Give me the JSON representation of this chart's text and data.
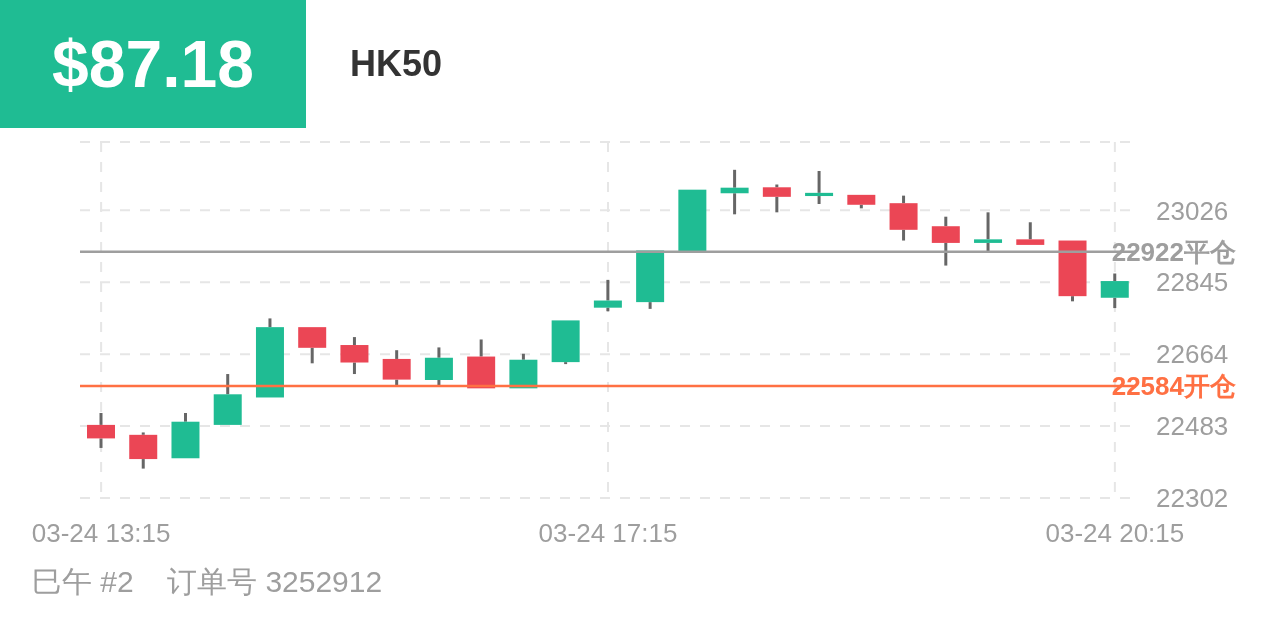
{
  "chart_data": {
    "type": "candlestick",
    "title": "HK50",
    "subtitle": "$87.18",
    "categories": [
      "03-24 13:15",
      null,
      null,
      null,
      null,
      null,
      null,
      null,
      null,
      null,
      null,
      null,
      "03-24 17:15",
      null,
      null,
      null,
      null,
      null,
      null,
      null,
      null,
      null,
      null,
      null,
      "03-24 20:15"
    ],
    "ohlc": [
      [
        22486,
        22516,
        22428,
        22452
      ],
      [
        22461,
        22467,
        22376,
        22400
      ],
      [
        22402,
        22516,
        22402,
        22494
      ],
      [
        22486,
        22614,
        22486,
        22563
      ],
      [
        22555,
        22754,
        22555,
        22732
      ],
      [
        22732,
        22732,
        22641,
        22680
      ],
      [
        22687,
        22707,
        22614,
        22643
      ],
      [
        22652,
        22674,
        22585,
        22600
      ],
      [
        22599,
        22681,
        22585,
        22655
      ],
      [
        22658,
        22701,
        22578,
        22578
      ],
      [
        22578,
        22665,
        22578,
        22650
      ],
      [
        22644,
        22749,
        22639,
        22749
      ],
      [
        22781,
        22851,
        22772,
        22799
      ],
      [
        22795,
        22925,
        22778,
        22925
      ],
      [
        22919,
        23078,
        22919,
        23078
      ],
      [
        23069,
        23128,
        23016,
        23083
      ],
      [
        23084,
        23091,
        23021,
        23060
      ],
      [
        23062,
        23125,
        23042,
        23070
      ],
      [
        23065,
        23065,
        23031,
        23040
      ],
      [
        23044,
        23063,
        22950,
        22977
      ],
      [
        22986,
        23010,
        22887,
        22944
      ],
      [
        22944,
        23021,
        22921,
        22953
      ],
      [
        22953,
        22996,
        22939,
        22939
      ],
      [
        22950,
        22950,
        22797,
        22810
      ],
      [
        22806,
        22867,
        22780,
        22848
      ]
    ],
    "colors": [
      "#eb4655",
      "#eb4655",
      "#1fbc93",
      "#1fbc93",
      "#1fbc93",
      "#eb4655",
      "#eb4655",
      "#eb4655",
      "#1fbc93",
      "#eb4655",
      "#1fbc93",
      "#1fbc93",
      "#1fbc93",
      "#1fbc93",
      "#1fbc93",
      "#1fbc93",
      "#eb4655",
      "#1fbc93",
      "#eb4655",
      "#eb4655",
      "#eb4655",
      "#1fbc93",
      "#eb4655",
      "#eb4655",
      "#1fbc93"
    ],
    "ylim": [
      22302,
      23198
    ],
    "yticks": [
      22302,
      22483,
      22664,
      22845,
      23026
    ],
    "grid": true,
    "ref_lines": [
      {
        "axis": "y",
        "value": 22922,
        "label": "22922平仓",
        "color": "#9e9e9e"
      },
      {
        "axis": "y",
        "value": 22584,
        "label": "22584开仓",
        "color": "#ff7043"
      }
    ],
    "annotations": [
      "巳午 #2    订单号 3252912"
    ]
  }
}
